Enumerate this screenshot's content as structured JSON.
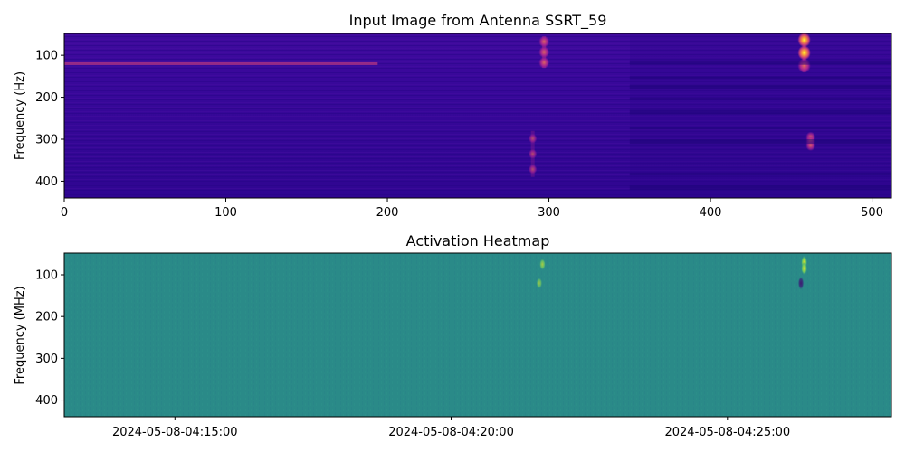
{
  "chart_data": [
    {
      "type": "heatmap",
      "title": "Input Image from Antenna SSRT_59",
      "xlabel": "",
      "ylabel": "Frequency (Hz)",
      "xlim": [
        0,
        512
      ],
      "ylim": [
        440,
        48
      ],
      "x_ticks": [
        0,
        100,
        200,
        300,
        400,
        500
      ],
      "y_ticks": [
        100,
        200,
        300,
        400
      ],
      "colormap": "plasma",
      "background_color": "#3a0a9a",
      "features": [
        {
          "kind": "horizontal-line",
          "y": 120,
          "x_start": 0,
          "x_end": 194,
          "intensity": 0.65
        },
        {
          "kind": "burst",
          "x": 297,
          "y_start": 55,
          "y_end": 130,
          "intensity": 0.7
        },
        {
          "kind": "burst",
          "x": 290,
          "y_start": 280,
          "y_end": 390,
          "intensity": 0.45
        },
        {
          "kind": "burst",
          "x": 458,
          "y_start": 48,
          "y_end": 140,
          "intensity": 1.0
        },
        {
          "kind": "burst",
          "x": 462,
          "y_start": 290,
          "y_end": 320,
          "intensity": 0.6
        },
        {
          "kind": "band-shift",
          "x_start": 350,
          "x_end": 512,
          "note": "darker band structure"
        }
      ]
    },
    {
      "type": "heatmap",
      "title": "Activation Heatmap",
      "xlabel": "",
      "ylabel": "Frequency (MHz)",
      "xlim": [
        0,
        512
      ],
      "ylim": [
        440,
        48
      ],
      "x_tick_labels": [
        "2024-05-08-04:15:00",
        "2024-05-08-04:20:00",
        "2024-05-08-04:25:00"
      ],
      "x_tick_positions": [
        68.5,
        239.5,
        410.5
      ],
      "y_ticks": [
        100,
        200,
        300,
        400
      ],
      "colormap": "viridis",
      "background_color": "#2a8a88",
      "features": [
        {
          "kind": "activation",
          "x": 458,
          "y": 70,
          "value": 0.9
        },
        {
          "kind": "activation",
          "x": 458,
          "y": 85,
          "value": 0.75
        },
        {
          "kind": "activation",
          "x": 456,
          "y": 120,
          "value": -0.9
        },
        {
          "kind": "activation",
          "x": 296,
          "y": 75,
          "value": 0.55
        },
        {
          "kind": "activation",
          "x": 294,
          "y": 120,
          "value": 0.45
        }
      ]
    }
  ]
}
